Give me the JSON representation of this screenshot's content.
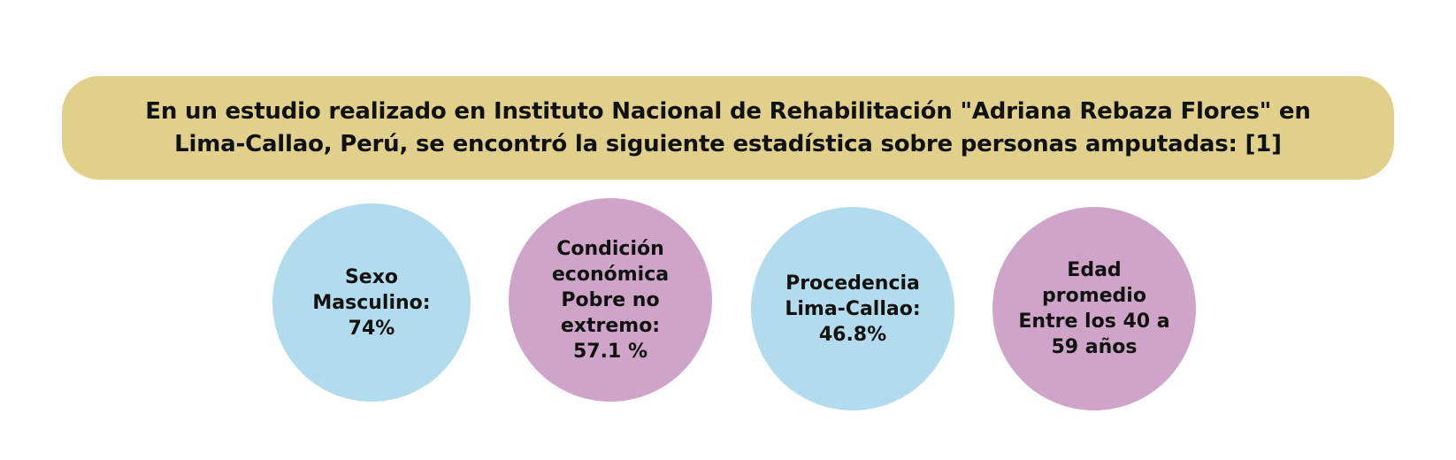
{
  "colors": {
    "banner": "#e0d08c",
    "blue": "#b2dced",
    "purple": "#cfa4c9",
    "text": "#111111"
  },
  "banner": {
    "text": "En un estudio realizado en Instituto Nacional de Rehabilitación \"Adriana Rebaza Flores\" en Lima-Callao, Perú, se encontró la siguiente estadística sobre personas amputadas: [1]"
  },
  "stats": [
    {
      "text": "Sexo\nMasculino:\n74%",
      "color": "blue"
    },
    {
      "text": "Condición\neconómica\nPobre no\nextremo:\n57.1 %",
      "color": "purple"
    },
    {
      "text": "Procedencia\nLima-Callao:\n46.8%",
      "color": "blue"
    },
    {
      "text": "Edad\npromedio\nEntre los 40 a\n59 años",
      "color": "purple"
    }
  ]
}
